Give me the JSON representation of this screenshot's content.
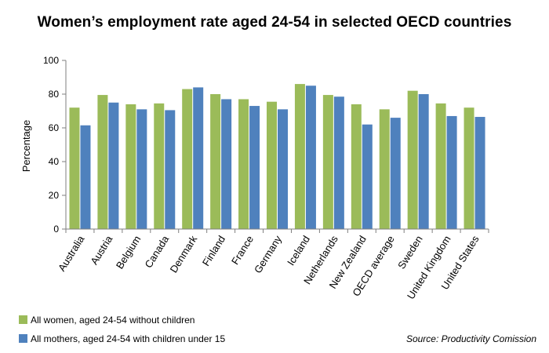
{
  "colors": {
    "series1": "#9BBB59",
    "series2": "#4F81BD",
    "axis": "#7f7f7f"
  },
  "chart_data": {
    "type": "bar",
    "title": "Women’s employment rate aged 24-54 in selected OECD countries",
    "ylabel": "Percentage",
    "xlabel": "",
    "ylim": [
      0,
      100
    ],
    "yticks": [
      0,
      20,
      40,
      60,
      80,
      100
    ],
    "categories": [
      "Australia",
      "Austria",
      "Belgium",
      "Canada",
      "Denmark",
      "Finland",
      "France",
      "Germany",
      "Iceland",
      "Netherlands",
      "New Zealand",
      "OECD average",
      "Sweden",
      "United Kingdom",
      "United States"
    ],
    "series": [
      {
        "name": "All women, aged 24-54 without children",
        "values": [
          72,
          79.5,
          74,
          74.5,
          83,
          80,
          77,
          75.5,
          86,
          79.5,
          74,
          71,
          82,
          74.5,
          72
        ]
      },
      {
        "name": "All mothers, aged 24-54 with children under 15",
        "values": [
          61.5,
          75,
          71,
          70.5,
          84,
          77,
          73,
          71,
          85,
          78.5,
          62,
          66,
          80,
          67,
          66.5
        ]
      }
    ],
    "grid": false,
    "legend": "bottom-left",
    "source": "Source: Productivity Comission"
  }
}
